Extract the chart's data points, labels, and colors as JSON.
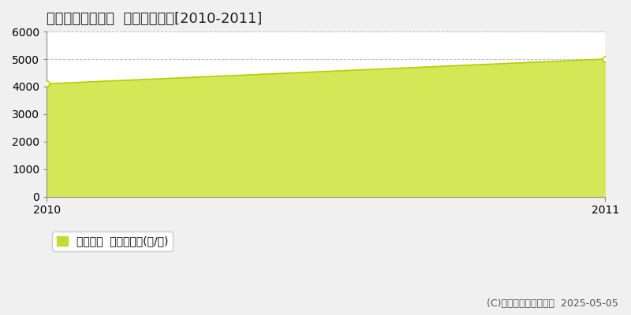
{
  "title": "久慈郡大子町袋田  農地価格推移[2010-2011]",
  "x": [
    2010,
    2011
  ],
  "y": [
    4100,
    5000
  ],
  "ylim": [
    0,
    6000
  ],
  "xlim": [
    2010,
    2011
  ],
  "yticks": [
    0,
    1000,
    2000,
    3000,
    4000,
    5000,
    6000
  ],
  "xticks": [
    2010,
    2011
  ],
  "line_color": "#b8cc00",
  "fill_color": "#d4e857",
  "fill_alpha": 1.0,
  "marker": "o",
  "marker_facecolor": "#ffffff",
  "marker_edgecolor": "#b8cc00",
  "marker_size": 5,
  "grid_color": "#aaaaaa",
  "grid_style": "--",
  "grid_alpha": 0.8,
  "plot_bg_color": "#ffffff",
  "fig_bg_color": "#f0f0f0",
  "legend_label": "農地価格  平均坊単価(円/坊)",
  "legend_color": "#c8d832",
  "copyright_text": "(C)土地価格ドットコム  2025-05-05",
  "title_fontsize": 13,
  "axis_fontsize": 10,
  "legend_fontsize": 10,
  "copyright_fontsize": 9
}
